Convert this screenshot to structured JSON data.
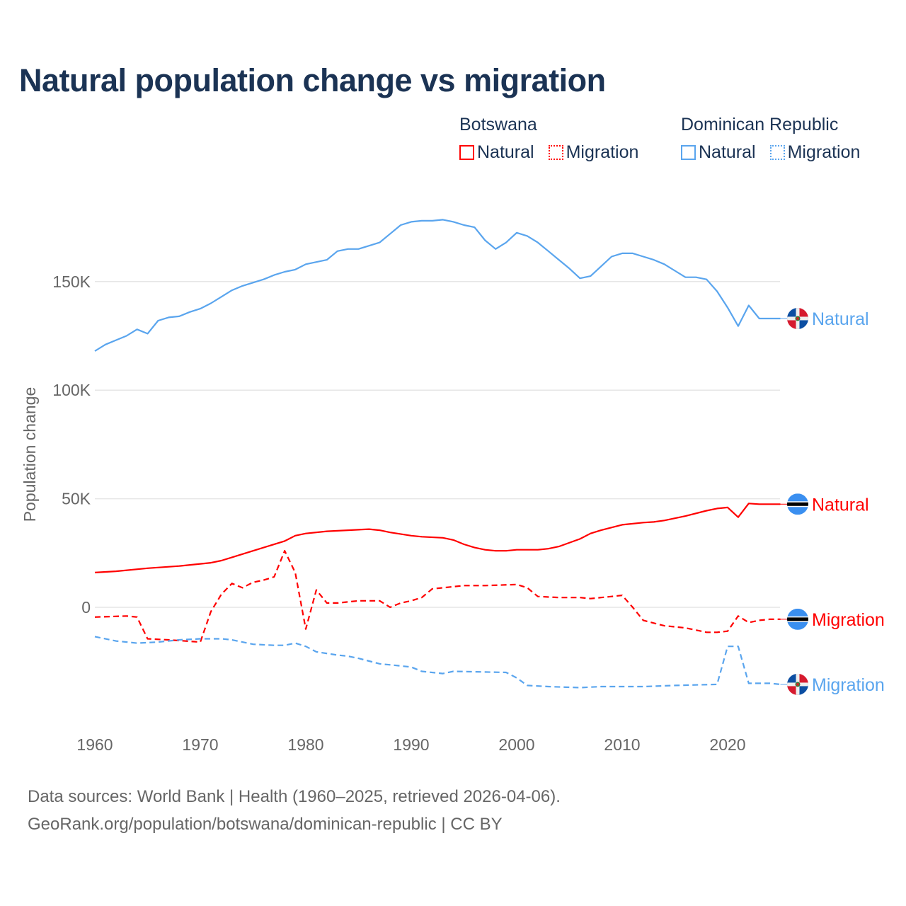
{
  "title": "Natural population change vs migration",
  "legend": [
    {
      "country": "Botswana",
      "items": [
        {
          "label": "Natural",
          "style": "solid",
          "color": "#ff0000"
        },
        {
          "label": "Migration",
          "style": "dotted",
          "color": "#ff0000"
        }
      ]
    },
    {
      "country": "Dominican Republic",
      "items": [
        {
          "label": "Natural",
          "style": "solid",
          "color": "#5aa5ee"
        },
        {
          "label": "Migration",
          "style": "dotted",
          "color": "#5aa5ee"
        }
      ]
    }
  ],
  "footer": {
    "line1": "Data sources: World Bank | Health (1960–2025, retrieved 2026-04-06).",
    "line2": "GeoRank.org/population/botswana/dominican-republic | CC BY"
  },
  "chart_data": {
    "type": "line",
    "title": "Natural population change vs migration",
    "xlabel": "",
    "ylabel": "Population change",
    "xlim": [
      1960,
      2025
    ],
    "ylim": [
      -50000,
      190000
    ],
    "grid": true,
    "x_ticks": [
      {
        "v": 1960,
        "label": "1960"
      },
      {
        "v": 1970,
        "label": "1970"
      },
      {
        "v": 1980,
        "label": "1980"
      },
      {
        "v": 1990,
        "label": "1990"
      },
      {
        "v": 2000,
        "label": "2000"
      },
      {
        "v": 2010,
        "label": "2010"
      },
      {
        "v": 2020,
        "label": "2020"
      }
    ],
    "y_ticks": [
      {
        "v": 0,
        "label": "0"
      },
      {
        "v": 50000,
        "label": "50K"
      },
      {
        "v": 100000,
        "label": "100K"
      },
      {
        "v": 150000,
        "label": "150K"
      }
    ],
    "series": [
      {
        "name": "Dominican Republic Natural",
        "end_label": "Natural",
        "flag": "dominican-republic",
        "color": "#5aa5ee",
        "dash": "",
        "points": [
          [
            1960,
            118
          ],
          [
            1961,
            121
          ],
          [
            1962,
            123
          ],
          [
            1963,
            125
          ],
          [
            1964,
            128
          ],
          [
            1965,
            126
          ],
          [
            1966,
            132
          ],
          [
            1967,
            133.5
          ],
          [
            1968,
            134
          ],
          [
            1969,
            136
          ],
          [
            1970,
            137.5
          ],
          [
            1971,
            140
          ],
          [
            1972,
            143
          ],
          [
            1973,
            146
          ],
          [
            1974,
            148
          ],
          [
            1975,
            149.5
          ],
          [
            1976,
            151
          ],
          [
            1977,
            153
          ],
          [
            1978,
            154.5
          ],
          [
            1979,
            155.5
          ],
          [
            1980,
            158
          ],
          [
            1981,
            159
          ],
          [
            1982,
            160
          ],
          [
            1983,
            164
          ],
          [
            1984,
            165
          ],
          [
            1985,
            165
          ],
          [
            1986,
            166.5
          ],
          [
            1987,
            168
          ],
          [
            1988,
            172
          ],
          [
            1989,
            176
          ],
          [
            1990,
            177.5
          ],
          [
            1991,
            178
          ],
          [
            1992,
            178
          ],
          [
            1993,
            178.5
          ],
          [
            1994,
            177.5
          ],
          [
            1995,
            176
          ],
          [
            1996,
            175
          ],
          [
            1997,
            169
          ],
          [
            1998,
            165
          ],
          [
            1999,
            168
          ],
          [
            2000,
            172.5
          ],
          [
            2001,
            171
          ],
          [
            2002,
            168
          ],
          [
            2003,
            164
          ],
          [
            2004,
            160
          ],
          [
            2005,
            156
          ],
          [
            2006,
            151.5
          ],
          [
            2007,
            152.5
          ],
          [
            2008,
            157
          ],
          [
            2009,
            161.5
          ],
          [
            2010,
            163
          ],
          [
            2011,
            163
          ],
          [
            2012,
            161.5
          ],
          [
            2013,
            160
          ],
          [
            2014,
            158
          ],
          [
            2015,
            155
          ],
          [
            2016,
            152
          ],
          [
            2017,
            152
          ],
          [
            2018,
            151
          ],
          [
            2019,
            145.5
          ],
          [
            2020,
            138
          ],
          [
            2021,
            129.5
          ],
          [
            2022,
            139
          ],
          [
            2023,
            133
          ],
          [
            2024,
            133
          ],
          [
            2025,
            133
          ]
        ]
      },
      {
        "name": "Botswana Natural",
        "end_label": "Natural",
        "flag": "botswana",
        "color": "#ff0000",
        "dash": "",
        "points": [
          [
            1960,
            16
          ],
          [
            1962,
            16.6
          ],
          [
            1965,
            18
          ],
          [
            1968,
            19
          ],
          [
            1970,
            20
          ],
          [
            1971,
            20.5
          ],
          [
            1972,
            21.5
          ],
          [
            1973,
            23
          ],
          [
            1975,
            26
          ],
          [
            1978,
            30.5
          ],
          [
            1979,
            33
          ],
          [
            1980,
            34
          ],
          [
            1982,
            35
          ],
          [
            1984,
            35.5
          ],
          [
            1986,
            36
          ],
          [
            1987,
            35.5
          ],
          [
            1988,
            34.5
          ],
          [
            1990,
            33
          ],
          [
            1991,
            32.5
          ],
          [
            1993,
            32
          ],
          [
            1994,
            31
          ],
          [
            1995,
            29
          ],
          [
            1996,
            27.5
          ],
          [
            1997,
            26.5
          ],
          [
            1998,
            26
          ],
          [
            1999,
            26
          ],
          [
            2000,
            26.5
          ],
          [
            2002,
            26.5
          ],
          [
            2003,
            27
          ],
          [
            2004,
            28
          ],
          [
            2006,
            31.5
          ],
          [
            2007,
            34
          ],
          [
            2008,
            35.5
          ],
          [
            2010,
            38
          ],
          [
            2012,
            39
          ],
          [
            2013,
            39.3
          ],
          [
            2014,
            40
          ],
          [
            2016,
            42
          ],
          [
            2018,
            44.5
          ],
          [
            2019,
            45.5
          ],
          [
            2020,
            46
          ],
          [
            2021,
            41.5
          ],
          [
            2022,
            47.8
          ],
          [
            2023,
            47.5
          ],
          [
            2024,
            47.5
          ],
          [
            2025,
            47.5
          ]
        ]
      },
      {
        "name": "Botswana Migration",
        "end_label": "Migration",
        "flag": "botswana",
        "color": "#ff0000",
        "dash": "8,5",
        "points": [
          [
            1960,
            -4.5
          ],
          [
            1963,
            -4
          ],
          [
            1964,
            -4.5
          ],
          [
            1965,
            -14.5
          ],
          [
            1967,
            -15
          ],
          [
            1970,
            -16
          ],
          [
            1971,
            -2
          ],
          [
            1972,
            6
          ],
          [
            1973,
            11
          ],
          [
            1974,
            9
          ],
          [
            1975,
            11.5
          ],
          [
            1976,
            12.5
          ],
          [
            1977,
            14
          ],
          [
            1978,
            26
          ],
          [
            1979,
            16
          ],
          [
            1980,
            -10
          ],
          [
            1981,
            8
          ],
          [
            1982,
            2
          ],
          [
            1983,
            2
          ],
          [
            1985,
            3
          ],
          [
            1987,
            3
          ],
          [
            1988,
            0
          ],
          [
            1989,
            2
          ],
          [
            1990,
            3
          ],
          [
            1991,
            4.5
          ],
          [
            1992,
            8.5
          ],
          [
            1993,
            9
          ],
          [
            1995,
            10
          ],
          [
            1997,
            10
          ],
          [
            2000,
            10.5
          ],
          [
            2001,
            9
          ],
          [
            2002,
            5
          ],
          [
            2004,
            4.5
          ],
          [
            2006,
            4.5
          ],
          [
            2007,
            4
          ],
          [
            2008,
            4.5
          ],
          [
            2009,
            5
          ],
          [
            2010,
            5.5
          ],
          [
            2011,
            0
          ],
          [
            2012,
            -6
          ],
          [
            2014,
            -8.5
          ],
          [
            2016,
            -9.5
          ],
          [
            2018,
            -11.5
          ],
          [
            2019,
            -11.5
          ],
          [
            2020,
            -11
          ],
          [
            2021,
            -4
          ],
          [
            2022,
            -7
          ],
          [
            2023,
            -6
          ],
          [
            2024,
            -5.5
          ],
          [
            2025,
            -5.5
          ]
        ]
      },
      {
        "name": "Dominican Republic Migration",
        "end_label": "Migration",
        "flag": "dominican-republic",
        "color": "#5aa5ee",
        "dash": "8,5",
        "points": [
          [
            1960,
            -13.5
          ],
          [
            1962,
            -15.5
          ],
          [
            1964,
            -16.5
          ],
          [
            1966,
            -16
          ],
          [
            1968,
            -15
          ],
          [
            1970,
            -14.5
          ],
          [
            1972,
            -14.5
          ],
          [
            1973,
            -15
          ],
          [
            1974,
            -16
          ],
          [
            1975,
            -17
          ],
          [
            1977,
            -17.5
          ],
          [
            1978,
            -17.5
          ],
          [
            1979,
            -16.5
          ],
          [
            1980,
            -18
          ],
          [
            1981,
            -20.5
          ],
          [
            1983,
            -22
          ],
          [
            1984,
            -22.5
          ],
          [
            1985,
            -23.5
          ],
          [
            1987,
            -26
          ],
          [
            1989,
            -27
          ],
          [
            1990,
            -27.5
          ],
          [
            1991,
            -29.5
          ],
          [
            1993,
            -30.5
          ],
          [
            1994,
            -29.5
          ],
          [
            1999,
            -30
          ],
          [
            2000,
            -32.5
          ],
          [
            2001,
            -36
          ],
          [
            2003,
            -36.5
          ],
          [
            2006,
            -37
          ],
          [
            2008,
            -36.5
          ],
          [
            2010,
            -36.5
          ],
          [
            2012,
            -36.5
          ],
          [
            2015,
            -36
          ],
          [
            2019,
            -35.5
          ],
          [
            2020,
            -18
          ],
          [
            2021,
            -18
          ],
          [
            2022,
            -35
          ],
          [
            2024,
            -35
          ],
          [
            2025,
            -35.5
          ]
        ]
      }
    ],
    "value_unit": "thousands"
  }
}
